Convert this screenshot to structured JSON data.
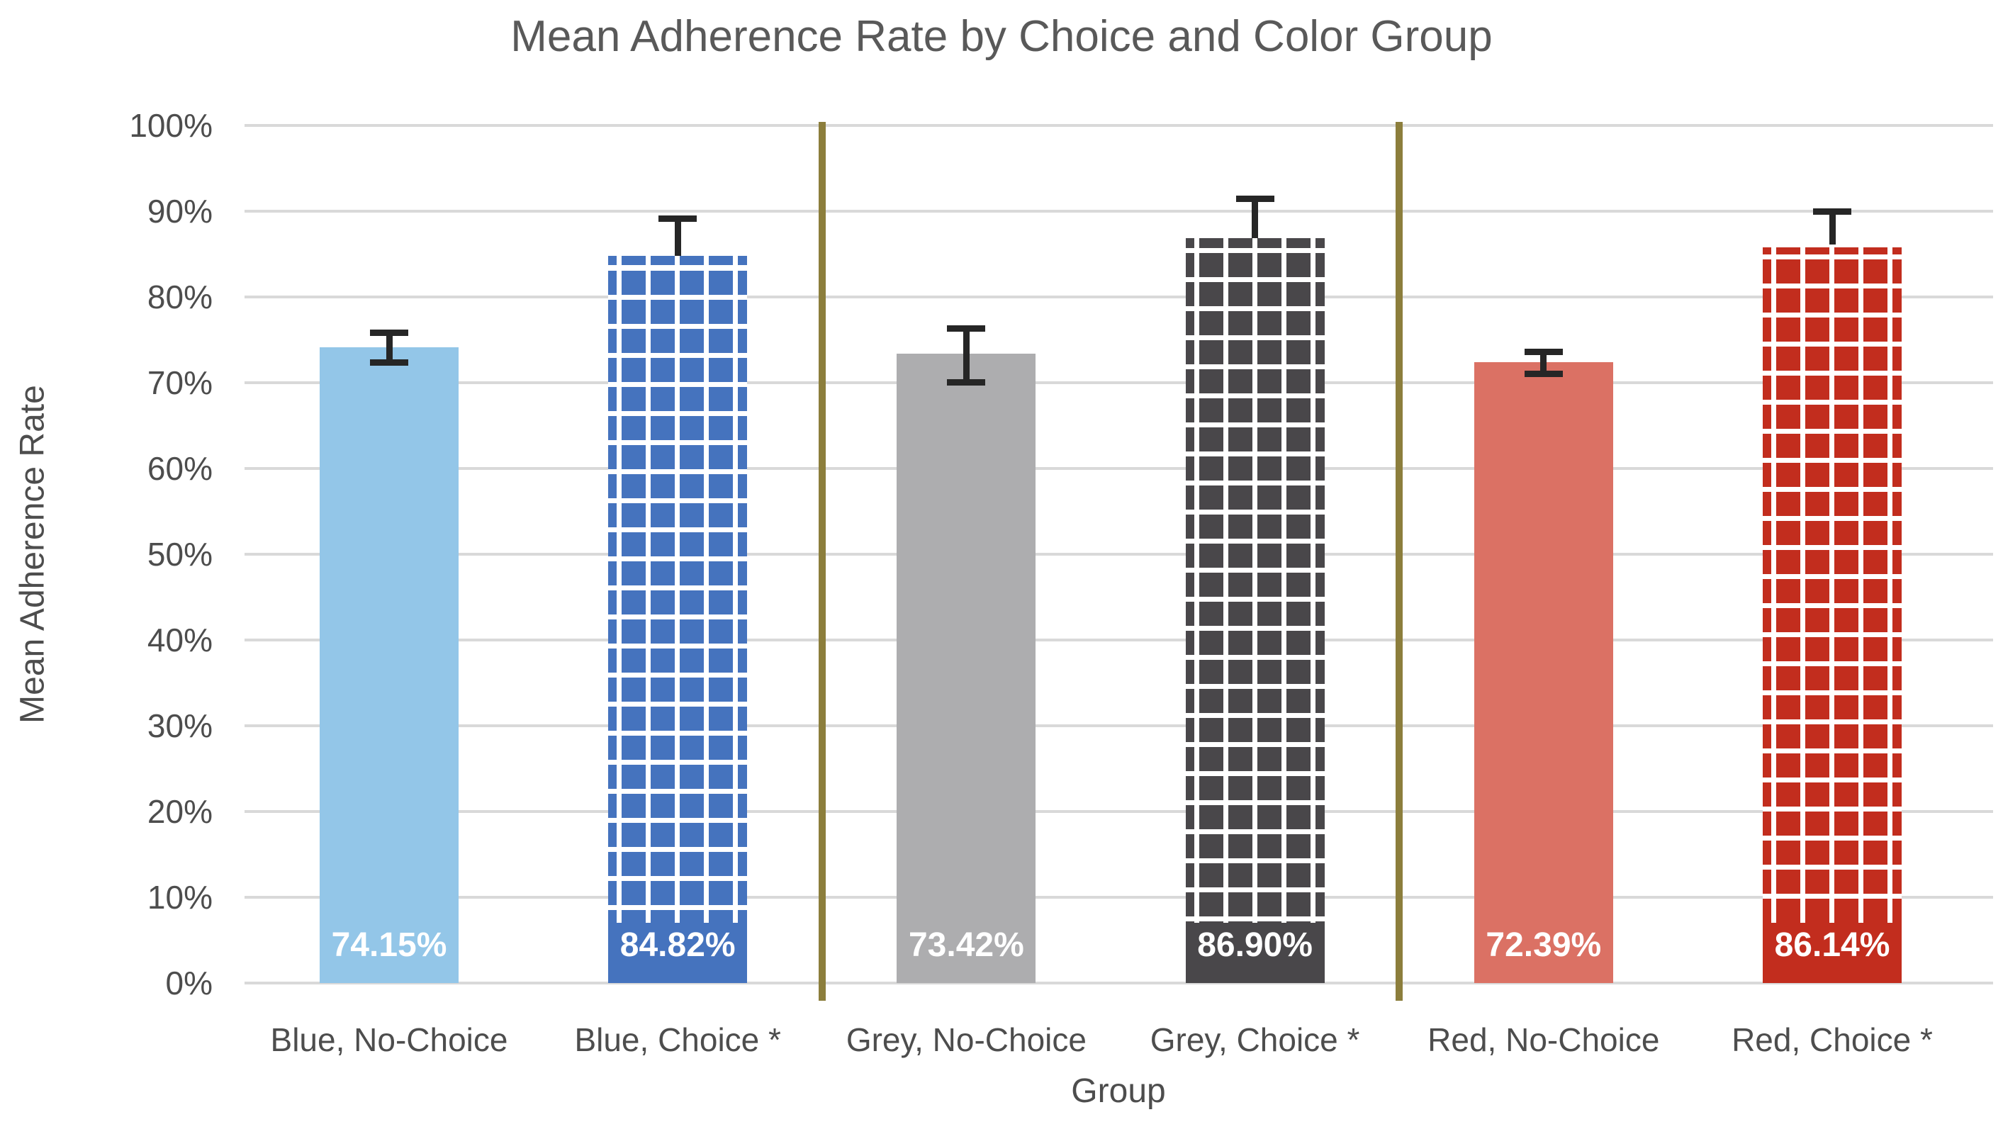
{
  "chart_data": {
    "type": "bar",
    "title": "Mean Adherence Rate by Choice and Color Group",
    "xlabel": "Group",
    "ylabel": "Mean Adherence Rate",
    "ylim": [
      0,
      100
    ],
    "ytick_step": 10,
    "ytick_labels": [
      "0%",
      "10%",
      "20%",
      "30%",
      "40%",
      "50%",
      "60%",
      "70%",
      "80%",
      "90%",
      "100%"
    ],
    "grid": true,
    "legend": "none",
    "categories": [
      "Blue, No-Choice",
      "Blue, Choice *",
      "Grey, No-Choice",
      "Grey, Choice *",
      "Red, No-Choice",
      "Red, Choice *"
    ],
    "values": [
      74.15,
      84.82,
      73.42,
      86.9,
      72.39,
      86.14
    ],
    "data_labels": [
      "74.15%",
      "84.82%",
      "73.42%",
      "86.90%",
      "72.39%",
      "86.14%"
    ],
    "bar_colors": [
      "#93C6E8",
      "#4573BE",
      "#ADADAF",
      "#49474A",
      "#DB7164",
      "#C22D1E"
    ],
    "bar_patterns": [
      "solid",
      "grid",
      "solid",
      "grid",
      "solid",
      "grid"
    ],
    "error_bars": [
      {
        "upper": 75.9,
        "lower": 72.3
      },
      {
        "upper": 89.2,
        "lower": null
      },
      {
        "upper": 76.4,
        "lower": 70.0
      },
      {
        "upper": 91.5,
        "lower": null
      },
      {
        "upper": 73.6,
        "lower": 71.0
      },
      {
        "upper": 90.0,
        "lower": null
      }
    ],
    "separators_after_index": [
      1,
      3
    ],
    "colors": {
      "gridline": "#D9D9D9",
      "separator": "#8C7E3C",
      "error_bar": "#262626",
      "title_text": "#595959",
      "axis_text": "#4D4D4D",
      "data_label_text": "#FFFFFF",
      "background": "#FFFFFF"
    }
  }
}
